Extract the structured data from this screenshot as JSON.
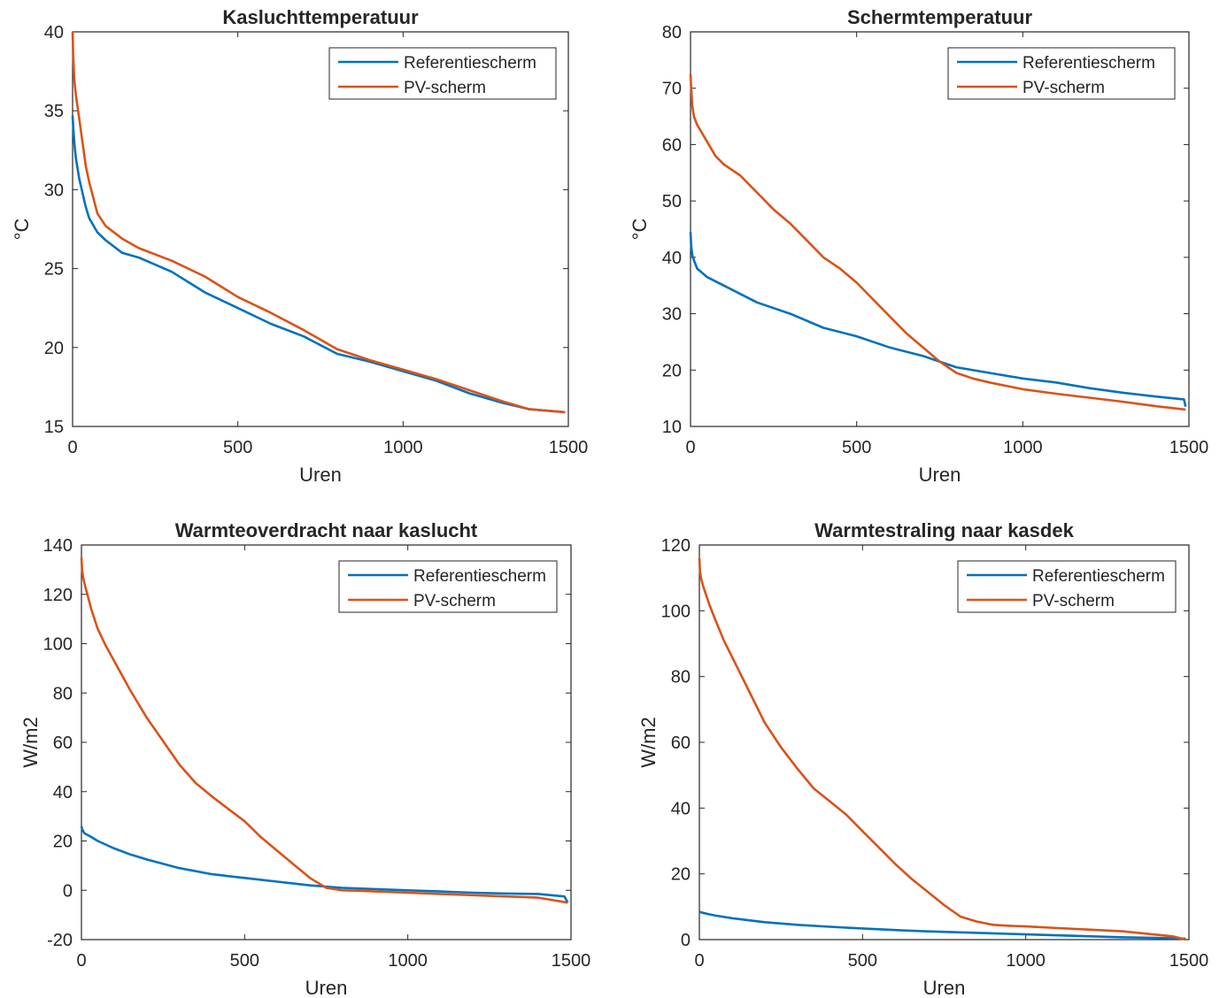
{
  "chart_data": [
    {
      "type": "line",
      "title": "Kasluchttemperatuur",
      "xlabel": "Uren",
      "ylabel": "°C",
      "xlim": [
        0,
        1500
      ],
      "ylim": [
        15,
        40
      ],
      "xticks": [
        "0",
        "500",
        "1000",
        "1500"
      ],
      "xtick_values": [
        0,
        500,
        1000,
        1500
      ],
      "yticks": [
        "15",
        "20",
        "25",
        "30",
        "35",
        "40"
      ],
      "ytick_values": [
        15,
        20,
        25,
        30,
        35,
        40
      ],
      "grid": false,
      "legend_position": "top-right",
      "series": [
        {
          "name": "Referentiescherm",
          "color": "#0072BD",
          "x": [
            0,
            2,
            5,
            10,
            20,
            30,
            40,
            50,
            75,
            100,
            150,
            200,
            300,
            400,
            500,
            600,
            700,
            800,
            900,
            1000,
            1100,
            1200,
            1300,
            1380,
            1490
          ],
          "y": [
            34.7,
            34.0,
            33.0,
            32.0,
            30.7,
            29.8,
            28.9,
            28.2,
            27.3,
            26.8,
            26.0,
            25.7,
            24.8,
            23.5,
            22.5,
            21.5,
            20.7,
            19.6,
            19.1,
            18.5,
            17.9,
            17.1,
            16.5,
            16.1,
            15.9
          ]
        },
        {
          "name": "PV-scherm",
          "color": "#D95319",
          "x": [
            0,
            2,
            5,
            10,
            20,
            30,
            40,
            50,
            75,
            100,
            150,
            200,
            300,
            400,
            500,
            600,
            700,
            800,
            900,
            1000,
            1100,
            1200,
            1300,
            1380,
            1490
          ],
          "y": [
            40.0,
            38.5,
            37.0,
            36.0,
            34.5,
            33.0,
            31.5,
            30.5,
            28.5,
            27.7,
            26.9,
            26.3,
            25.5,
            24.5,
            23.2,
            22.2,
            21.1,
            19.9,
            19.2,
            18.6,
            18.0,
            17.3,
            16.6,
            16.1,
            15.9
          ]
        }
      ]
    },
    {
      "type": "line",
      "title": "Schermtemperatuur",
      "xlabel": "Uren",
      "ylabel": "°C",
      "xlim": [
        0,
        1500
      ],
      "ylim": [
        10,
        80
      ],
      "xticks": [
        "0",
        "500",
        "1000",
        "1500"
      ],
      "xtick_values": [
        0,
        500,
        1000,
        1500
      ],
      "yticks": [
        "10",
        "20",
        "30",
        "40",
        "50",
        "60",
        "70",
        "80"
      ],
      "ytick_values": [
        10,
        20,
        30,
        40,
        50,
        60,
        70,
        80
      ],
      "grid": false,
      "legend_position": "top-right",
      "series": [
        {
          "name": "Referentiescherm",
          "color": "#0072BD",
          "x": [
            0,
            2,
            5,
            10,
            20,
            30,
            50,
            100,
            200,
            300,
            400,
            500,
            600,
            700,
            800,
            900,
            1000,
            1100,
            1200,
            1300,
            1400,
            1485,
            1490
          ],
          "y": [
            44.5,
            42.0,
            40.5,
            39.5,
            38.0,
            37.5,
            36.5,
            35.0,
            32.0,
            30.0,
            27.5,
            26.0,
            24.0,
            22.5,
            20.5,
            19.5,
            18.5,
            17.8,
            16.8,
            16.0,
            15.3,
            14.8,
            13.5
          ]
        },
        {
          "name": "PV-scherm",
          "color": "#D95319",
          "x": [
            0,
            2,
            5,
            10,
            20,
            30,
            50,
            75,
            100,
            150,
            200,
            250,
            300,
            350,
            400,
            450,
            500,
            550,
            600,
            650,
            700,
            750,
            800,
            850,
            900,
            950,
            1000,
            1100,
            1200,
            1300,
            1400,
            1490
          ],
          "y": [
            72.5,
            70.0,
            67.0,
            65.0,
            63.5,
            62.5,
            60.5,
            58.0,
            56.5,
            54.5,
            51.5,
            48.5,
            46.0,
            43.0,
            40.0,
            38.0,
            35.5,
            32.5,
            29.5,
            26.5,
            24.0,
            21.5,
            19.5,
            18.5,
            17.8,
            17.2,
            16.6,
            15.8,
            15.1,
            14.4,
            13.6,
            13.0
          ]
        }
      ]
    },
    {
      "type": "line",
      "title": "Warmteoverdracht naar kaslucht",
      "xlabel": "Uren",
      "ylabel": "W/m2",
      "xlim": [
        0,
        1500
      ],
      "ylim": [
        -20,
        140
      ],
      "xticks": [
        "0",
        "500",
        "1000",
        "1500"
      ],
      "xtick_values": [
        0,
        500,
        1000,
        1500
      ],
      "yticks": [
        "-20",
        "0",
        "20",
        "40",
        "60",
        "80",
        "100",
        "120",
        "140"
      ],
      "ytick_values": [
        -20,
        0,
        20,
        40,
        60,
        80,
        100,
        120,
        140
      ],
      "grid": false,
      "legend_position": "top-right",
      "series": [
        {
          "name": "Referentiescherm",
          "color": "#0072BD",
          "x": [
            0,
            2,
            5,
            10,
            25,
            50,
            100,
            150,
            200,
            300,
            400,
            500,
            600,
            700,
            800,
            900,
            1000,
            1100,
            1200,
            1300,
            1400,
            1480,
            1490
          ],
          "y": [
            26.0,
            25.0,
            24.0,
            23.0,
            22.0,
            20.0,
            17.0,
            14.5,
            12.5,
            9.0,
            6.5,
            5.0,
            3.5,
            2.0,
            1.0,
            0.5,
            0.0,
            -0.5,
            -1.0,
            -1.3,
            -1.5,
            -2.5,
            -5.0
          ]
        },
        {
          "name": "PV-scherm",
          "color": "#D95319",
          "x": [
            0,
            2,
            5,
            10,
            20,
            30,
            50,
            75,
            100,
            150,
            200,
            250,
            300,
            350,
            400,
            450,
            500,
            550,
            600,
            650,
            700,
            750,
            800,
            850,
            900,
            1000,
            1100,
            1200,
            1300,
            1400,
            1490
          ],
          "y": [
            135.0,
            130.0,
            127.0,
            124.0,
            119.0,
            114.0,
            106.0,
            99.0,
            93.0,
            81.0,
            70.0,
            60.5,
            51.0,
            43.5,
            38.0,
            33.0,
            28.0,
            21.5,
            16.0,
            10.5,
            5.0,
            1.0,
            0.0,
            -0.2,
            -0.5,
            -1.0,
            -1.5,
            -2.0,
            -2.5,
            -3.0,
            -5.0
          ]
        }
      ]
    },
    {
      "type": "line",
      "title": "Warmtestraling naar kasdek",
      "xlabel": "Uren",
      "ylabel": "W/m2",
      "xlim": [
        0,
        1500
      ],
      "ylim": [
        0,
        120
      ],
      "xticks": [
        "0",
        "500",
        "1000",
        "1500"
      ],
      "xtick_values": [
        0,
        500,
        1000,
        1500
      ],
      "yticks": [
        "0",
        "20",
        "40",
        "60",
        "80",
        "100",
        "120"
      ],
      "ytick_values": [
        0,
        20,
        40,
        60,
        80,
        100,
        120
      ],
      "grid": false,
      "legend_position": "top-right",
      "series": [
        {
          "name": "Referentiescherm",
          "color": "#0072BD",
          "x": [
            0,
            5,
            25,
            50,
            100,
            200,
            300,
            400,
            500,
            600,
            700,
            800,
            900,
            1000,
            1100,
            1200,
            1300,
            1400,
            1490
          ],
          "y": [
            8.5,
            8.3,
            7.8,
            7.3,
            6.5,
            5.3,
            4.5,
            3.9,
            3.4,
            2.9,
            2.5,
            2.2,
            1.9,
            1.6,
            1.3,
            1.0,
            0.7,
            0.5,
            0.3
          ]
        },
        {
          "name": "PV-scherm",
          "color": "#D95319",
          "x": [
            0,
            2,
            5,
            10,
            20,
            30,
            50,
            75,
            100,
            150,
            200,
            250,
            300,
            350,
            400,
            450,
            500,
            550,
            600,
            650,
            700,
            750,
            800,
            850,
            900,
            950,
            1000,
            1100,
            1200,
            1300,
            1400,
            1450,
            1490
          ],
          "y": [
            116.0,
            112.0,
            110.0,
            108.0,
            105.0,
            102.0,
            97.0,
            91.0,
            86.0,
            76.0,
            66.0,
            58.5,
            52.0,
            46.0,
            42.0,
            38.0,
            33.0,
            28.0,
            23.0,
            18.5,
            14.5,
            10.5,
            7.0,
            5.5,
            4.5,
            4.2,
            4.0,
            3.5,
            3.0,
            2.5,
            1.5,
            1.0,
            0.0
          ]
        }
      ]
    }
  ]
}
